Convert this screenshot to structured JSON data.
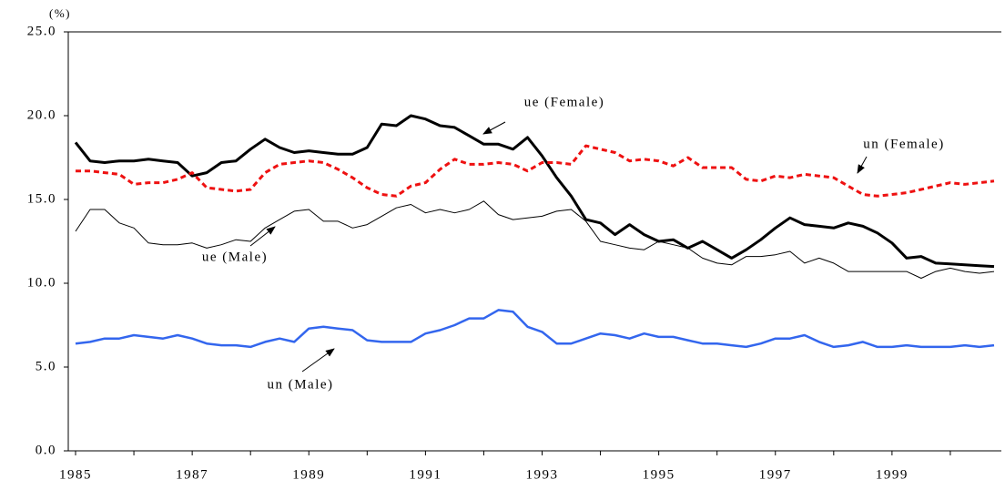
{
  "chart_data": {
    "type": "line",
    "y_label": "(%)",
    "categories": [
      "1985",
      null,
      null,
      null,
      null,
      null,
      null,
      null,
      "1987",
      null,
      null,
      null,
      null,
      null,
      null,
      null,
      "1989",
      null,
      null,
      null,
      null,
      null,
      null,
      null,
      "1991",
      null,
      null,
      null,
      null,
      null,
      null,
      null,
      "1993",
      null,
      null,
      null,
      null,
      null,
      null,
      null,
      "1995",
      null,
      null,
      null,
      null,
      null,
      null,
      null,
      "1997",
      null,
      null,
      null,
      null,
      null,
      null,
      null,
      "1999",
      null,
      null,
      null,
      null,
      null,
      null,
      null
    ],
    "ylim": [
      0,
      25
    ],
    "yticks": [
      {
        "value": 0,
        "label": "0.0"
      },
      {
        "value": 5,
        "label": "5.0"
      },
      {
        "value": 10,
        "label": "10.0"
      },
      {
        "value": 15,
        "label": "15.0"
      },
      {
        "value": 20,
        "label": "20.0"
      },
      {
        "value": 25,
        "label": "25.0"
      }
    ],
    "series": [
      {
        "name": "ue (Female)",
        "color": "#000000",
        "line_width": 3,
        "dash": false,
        "values": [
          18.4,
          17.3,
          17.2,
          17.3,
          17.3,
          17.4,
          17.3,
          17.2,
          16.4,
          16.6,
          17.2,
          17.3,
          18.0,
          18.6,
          18.1,
          17.8,
          17.9,
          17.8,
          17.7,
          17.7,
          18.1,
          19.5,
          19.4,
          20.0,
          19.8,
          19.4,
          19.3,
          18.8,
          18.3,
          18.3,
          18.0,
          18.7,
          17.6,
          16.3,
          15.2,
          13.8,
          13.6,
          12.9,
          13.5,
          12.9,
          12.5,
          12.6,
          12.1,
          12.5,
          12.0,
          11.5,
          12.0,
          12.6,
          13.3,
          13.9,
          13.5,
          13.4,
          13.3,
          13.6,
          13.4,
          13.0,
          12.4,
          11.5,
          11.6,
          11.2,
          11.15,
          11.1,
          11.05,
          11.0
        ]
      },
      {
        "name": "ue (Male)",
        "color": "#000000",
        "line_width": 1,
        "dash": false,
        "values": [
          13.1,
          14.4,
          14.4,
          13.6,
          13.3,
          12.4,
          12.3,
          12.3,
          12.4,
          12.1,
          12.3,
          12.6,
          12.5,
          13.3,
          13.8,
          14.3,
          14.4,
          13.7,
          13.7,
          13.3,
          13.5,
          14.0,
          14.5,
          14.7,
          14.2,
          14.4,
          14.2,
          14.4,
          14.9,
          14.1,
          13.8,
          13.9,
          14.0,
          14.3,
          14.4,
          13.7,
          12.5,
          12.3,
          12.1,
          12.0,
          12.5,
          12.3,
          12.1,
          11.5,
          11.2,
          11.1,
          11.6,
          11.6,
          11.7,
          11.9,
          11.2,
          11.5,
          11.2,
          10.7,
          10.7,
          10.7,
          10.7,
          10.7,
          10.3,
          10.7,
          10.9,
          10.7,
          10.6,
          10.7
        ]
      },
      {
        "name": "un (Female)",
        "color": "#ee1111",
        "line_width": 3,
        "dash": true,
        "values": [
          16.7,
          16.7,
          16.6,
          16.5,
          15.9,
          16.0,
          16.0,
          16.2,
          16.6,
          15.7,
          15.6,
          15.5,
          15.6,
          16.6,
          17.1,
          17.2,
          17.3,
          17.2,
          16.8,
          16.3,
          15.7,
          15.3,
          15.2,
          15.8,
          16.0,
          16.8,
          17.4,
          17.1,
          17.1,
          17.2,
          17.1,
          16.7,
          17.2,
          17.2,
          17.1,
          18.2,
          18.0,
          17.8,
          17.3,
          17.4,
          17.3,
          17.0,
          17.5,
          16.9,
          16.9,
          16.9,
          16.2,
          16.1,
          16.4,
          16.3,
          16.5,
          16.4,
          16.3,
          15.8,
          15.3,
          15.2,
          15.3,
          15.4,
          15.6,
          15.8,
          16.0,
          15.9,
          16.0,
          16.1
        ]
      },
      {
        "name": "un (Male)",
        "color": "#3366ee",
        "line_width": 2.5,
        "dash": false,
        "values": [
          6.4,
          6.5,
          6.7,
          6.7,
          6.9,
          6.8,
          6.7,
          6.9,
          6.7,
          6.4,
          6.3,
          6.3,
          6.2,
          6.5,
          6.7,
          6.5,
          7.3,
          7.4,
          7.3,
          7.2,
          6.6,
          6.5,
          6.5,
          6.5,
          7.0,
          7.2,
          7.5,
          7.9,
          7.9,
          8.4,
          8.3,
          7.4,
          7.1,
          6.4,
          6.4,
          6.7,
          7.0,
          6.9,
          6.7,
          7.0,
          6.8,
          6.8,
          6.6,
          6.4,
          6.4,
          6.3,
          6.2,
          6.4,
          6.7,
          6.7,
          6.9,
          6.5,
          6.2,
          6.3,
          6.5,
          6.2,
          6.2,
          6.3,
          6.2,
          6.2,
          6.2,
          6.3,
          6.2,
          6.3
        ]
      }
    ]
  }
}
